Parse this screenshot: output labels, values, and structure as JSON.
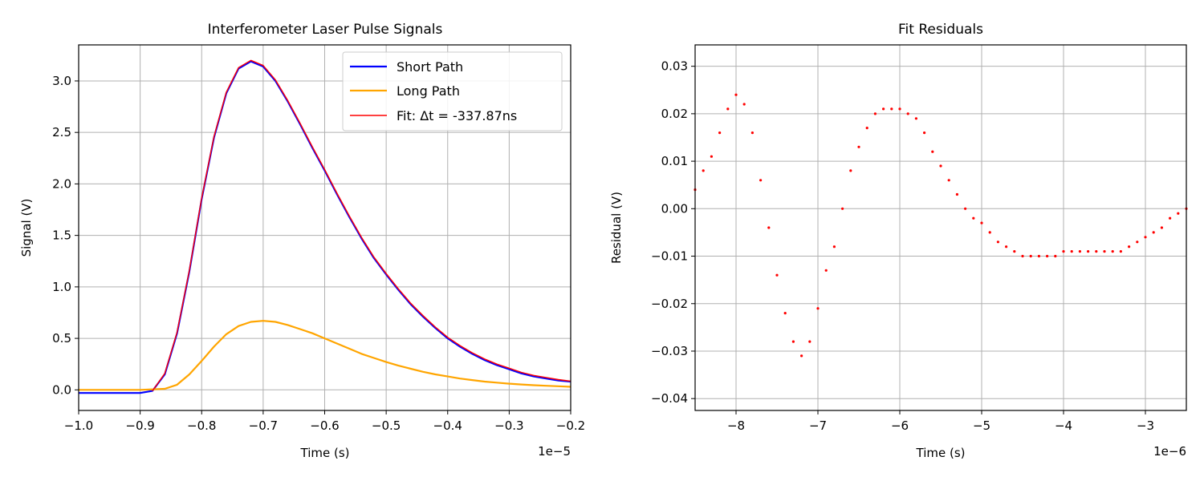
{
  "chart_data": [
    {
      "type": "line",
      "title": "Interferometer Laser Pulse Signals",
      "xlabel": "Time (s)",
      "ylabel": "Signal (V)",
      "x_offset_label": "1e−5",
      "xlim": [
        -1.0,
        -0.2
      ],
      "ylim": [
        -0.2,
        3.35
      ],
      "xticks": [
        -1.0,
        -0.9,
        -0.8,
        -0.7,
        -0.6,
        -0.5,
        -0.4,
        -0.3,
        -0.2
      ],
      "xtick_labels": [
        "−1.0",
        "−0.9",
        "−0.8",
        "−0.7",
        "−0.6",
        "−0.5",
        "−0.4",
        "−0.3",
        "−0.2"
      ],
      "yticks": [
        0.0,
        0.5,
        1.0,
        1.5,
        2.0,
        2.5,
        3.0
      ],
      "ytick_labels": [
        "0.0",
        "0.5",
        "1.0",
        "1.5",
        "2.0",
        "2.5",
        "3.0"
      ],
      "grid": true,
      "legend_position": "top-right",
      "series": [
        {
          "name": "Short Path",
          "color": "#0000ff",
          "x": [
            -1.0,
            -0.95,
            -0.9,
            -0.88,
            -0.86,
            -0.84,
            -0.82,
            -0.8,
            -0.78,
            -0.76,
            -0.74,
            -0.72,
            -0.7,
            -0.68,
            -0.66,
            -0.64,
            -0.62,
            -0.6,
            -0.58,
            -0.56,
            -0.54,
            -0.52,
            -0.5,
            -0.48,
            -0.46,
            -0.44,
            -0.42,
            -0.4,
            -0.38,
            -0.36,
            -0.34,
            -0.32,
            -0.3,
            -0.28,
            -0.26,
            -0.24,
            -0.22,
            -0.2
          ],
          "y": [
            -0.03,
            -0.03,
            -0.03,
            -0.01,
            0.15,
            0.55,
            1.15,
            1.85,
            2.45,
            2.88,
            3.12,
            3.19,
            3.14,
            3.0,
            2.8,
            2.58,
            2.35,
            2.13,
            1.9,
            1.68,
            1.47,
            1.28,
            1.12,
            0.97,
            0.83,
            0.71,
            0.6,
            0.5,
            0.42,
            0.35,
            0.29,
            0.24,
            0.2,
            0.16,
            0.13,
            0.11,
            0.09,
            0.08
          ]
        },
        {
          "name": "Long Path",
          "color": "#ffa500",
          "x": [
            -1.0,
            -0.9,
            -0.86,
            -0.84,
            -0.82,
            -0.8,
            -0.78,
            -0.76,
            -0.74,
            -0.72,
            -0.7,
            -0.68,
            -0.66,
            -0.64,
            -0.62,
            -0.6,
            -0.58,
            -0.56,
            -0.54,
            -0.52,
            -0.5,
            -0.48,
            -0.46,
            -0.44,
            -0.42,
            -0.4,
            -0.38,
            -0.36,
            -0.34,
            -0.32,
            -0.3,
            -0.28,
            -0.26,
            -0.24,
            -0.22,
            -0.2
          ],
          "y": [
            0.0,
            0.0,
            0.01,
            0.05,
            0.15,
            0.28,
            0.42,
            0.54,
            0.62,
            0.66,
            0.67,
            0.66,
            0.63,
            0.59,
            0.55,
            0.5,
            0.45,
            0.4,
            0.35,
            0.31,
            0.27,
            0.235,
            0.205,
            0.175,
            0.15,
            0.13,
            0.11,
            0.095,
            0.08,
            0.07,
            0.06,
            0.052,
            0.045,
            0.04,
            0.035,
            0.03
          ]
        },
        {
          "name": "Fit: Δt = -337.87ns",
          "color": "#ff0000",
          "x": [
            -0.88,
            -0.86,
            -0.84,
            -0.82,
            -0.8,
            -0.78,
            -0.76,
            -0.74,
            -0.72,
            -0.7,
            -0.68,
            -0.66,
            -0.64,
            -0.62,
            -0.6,
            -0.58,
            -0.56,
            -0.54,
            -0.52,
            -0.5,
            -0.48,
            -0.46,
            -0.44,
            -0.42,
            -0.4,
            -0.38,
            -0.36,
            -0.34,
            -0.32,
            -0.3,
            -0.28,
            -0.26,
            -0.24,
            -0.22,
            -0.2
          ],
          "y": [
            -0.01,
            0.16,
            0.56,
            1.16,
            1.86,
            2.46,
            2.89,
            3.13,
            3.2,
            3.15,
            3.01,
            2.81,
            2.59,
            2.36,
            2.14,
            1.91,
            1.69,
            1.48,
            1.29,
            1.13,
            0.98,
            0.84,
            0.72,
            0.61,
            0.51,
            0.43,
            0.36,
            0.3,
            0.25,
            0.21,
            0.17,
            0.14,
            0.12,
            0.1,
            0.085
          ]
        }
      ]
    },
    {
      "type": "scatter",
      "title": "Fit Residuals",
      "xlabel": "Time (s)",
      "ylabel": "Residual (V)",
      "x_offset_label": "1e−6",
      "xlim": [
        -8.5,
        -2.5
      ],
      "ylim": [
        -0.0425,
        0.0345
      ],
      "xticks": [
        -8,
        -7,
        -6,
        -5,
        -4,
        -3
      ],
      "xtick_labels": [
        "−8",
        "−7",
        "−6",
        "−5",
        "−4",
        "−3"
      ],
      "yticks": [
        -0.04,
        -0.03,
        -0.02,
        -0.01,
        0.0,
        0.01,
        0.02,
        0.03
      ],
      "ytick_labels": [
        "−0.04",
        "−0.03",
        "−0.02",
        "−0.01",
        "0.00",
        "0.01",
        "0.02",
        "0.03"
      ],
      "grid": true,
      "series": [
        {
          "color": "#ff0000",
          "x": [
            -8.5,
            -8.4,
            -8.3,
            -8.2,
            -8.1,
            -8.0,
            -7.9,
            -7.8,
            -7.7,
            -7.6,
            -7.5,
            -7.4,
            -7.3,
            -7.2,
            -7.1,
            -7.0,
            -6.9,
            -6.8,
            -6.7,
            -6.6,
            -6.5,
            -6.4,
            -6.3,
            -6.2,
            -6.1,
            -6.0,
            -5.9,
            -5.8,
            -5.7,
            -5.6,
            -5.5,
            -5.4,
            -5.3,
            -5.2,
            -5.1,
            -5.0,
            -4.9,
            -4.8,
            -4.7,
            -4.6,
            -4.5,
            -4.4,
            -4.3,
            -4.2,
            -4.1,
            -4.0,
            -3.9,
            -3.8,
            -3.7,
            -3.6,
            -3.5,
            -3.4,
            -3.3,
            -3.2,
            -3.1,
            -3.0,
            -2.9,
            -2.8,
            -2.7,
            -2.6,
            -2.5
          ],
          "y": [
            0.004,
            0.008,
            0.011,
            0.016,
            0.021,
            0.024,
            0.022,
            0.016,
            0.006,
            -0.004,
            -0.014,
            -0.022,
            -0.028,
            -0.031,
            -0.028,
            -0.021,
            -0.013,
            -0.008,
            0.0,
            0.008,
            0.013,
            0.017,
            0.02,
            0.021,
            0.021,
            0.021,
            0.02,
            0.019,
            0.016,
            0.012,
            0.009,
            0.006,
            0.003,
            0.0,
            -0.002,
            -0.003,
            -0.005,
            -0.007,
            -0.008,
            -0.009,
            -0.01,
            -0.01,
            -0.01,
            -0.01,
            -0.01,
            -0.009,
            -0.009,
            -0.009,
            -0.009,
            -0.009,
            -0.009,
            -0.009,
            -0.009,
            -0.008,
            -0.007,
            -0.006,
            -0.005,
            -0.004,
            -0.002,
            -0.001,
            0.0
          ]
        }
      ]
    }
  ]
}
